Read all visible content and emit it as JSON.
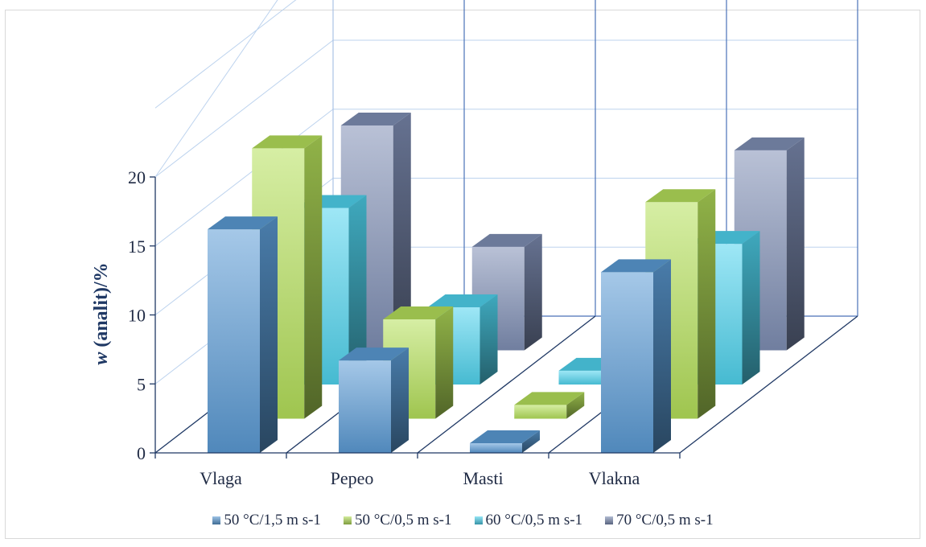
{
  "chart_data": {
    "type": "bar",
    "subtype": "3d-column",
    "title": "",
    "xlabel": "",
    "ylabel_italic": "w",
    "ylabel_rest": " (analit)/%",
    "ylim": [
      0,
      20
    ],
    "yticks": [
      "0",
      "5",
      "10",
      "15",
      "20"
    ],
    "categories": [
      "Vlaga",
      "Pepeo",
      "Masti",
      "Vlakna"
    ],
    "series": [
      {
        "name": "50 °C/1,5 m s-1",
        "values": [
          16.2,
          6.7,
          0.7,
          13.1
        ],
        "color": "#5b9bd5"
      },
      {
        "name": "50 °C/0,5 m s-1",
        "values": [
          19.6,
          7.2,
          1.0,
          15.7
        ],
        "color": "#b5e05a"
      },
      {
        "name": "60 °C/0,5 m s-1",
        "values": [
          12.8,
          5.6,
          1.0,
          10.2
        ],
        "color": "#4fd3ee"
      },
      {
        "name": "70 °C/0,5 m s-1",
        "values": [
          16.3,
          7.5,
          0.0,
          14.5
        ],
        "color": "#7f8fb5"
      }
    ],
    "grid": true,
    "legend_position": "bottom"
  }
}
